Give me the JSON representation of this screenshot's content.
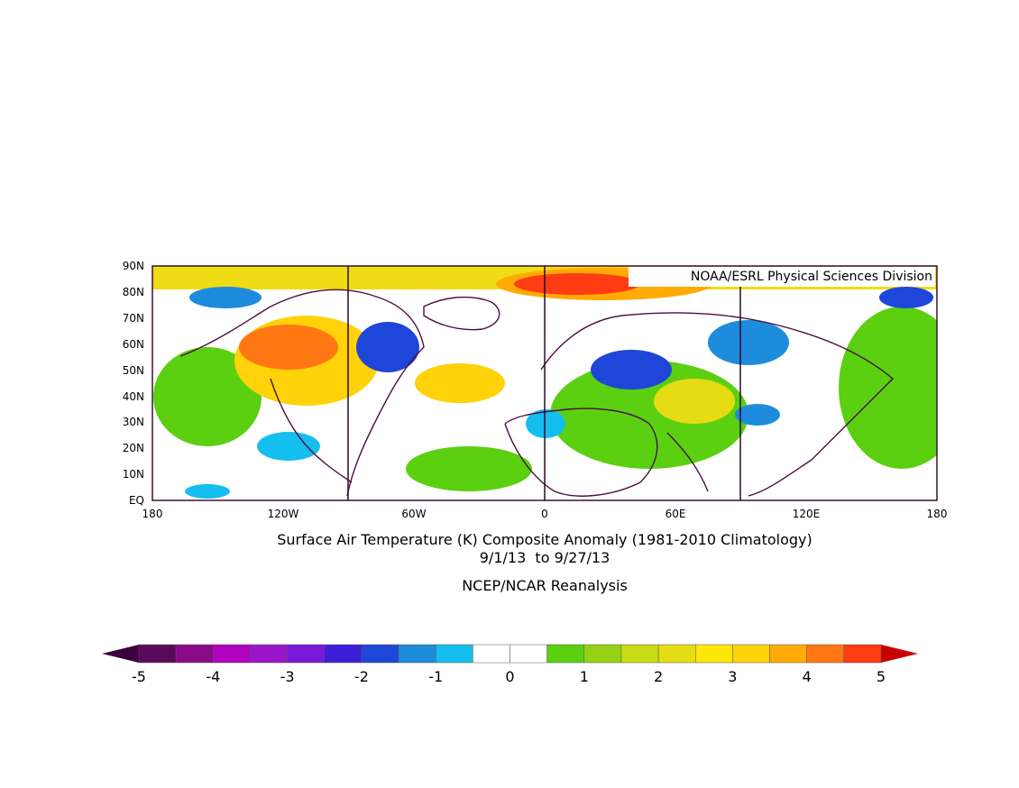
{
  "map": {
    "credit": "NOAA/ESRL Physical Sciences Division",
    "lat_labels": [
      "90N",
      "80N",
      "70N",
      "60N",
      "50N",
      "40N",
      "30N",
      "20N",
      "10N",
      "EQ"
    ],
    "lon_labels": [
      "180",
      "120W",
      "60W",
      "0",
      "60E",
      "120E",
      "180"
    ],
    "title_line1": "Surface Air Temperature (K) Composite Anomaly (1981-2010 Climatology)",
    "title_line2": "9/1/13  to 9/27/13",
    "subtitle": "NCEP/NCAR Reanalysis"
  },
  "legend": {
    "labels": [
      "-5",
      "-4",
      "-3",
      "-2",
      "-1",
      "0",
      "1",
      "2",
      "3",
      "4",
      "5"
    ],
    "colors": [
      "#5a0a5a",
      "#8a0a8a",
      "#b000c0",
      "#9a14c8",
      "#7818d8",
      "#3c1ed8",
      "#1e46d8",
      "#1e8cdc",
      "#14beee",
      "#ffffff",
      "#ffffff",
      "#5ad010",
      "#96d214",
      "#c8dc14",
      "#e6dc14",
      "#ffe60a",
      "#ffd20a",
      "#ffaa05",
      "#ff7814",
      "#ff3c14"
    ],
    "low_arrow_color": "#3c003c",
    "high_arrow_color": "#c80000"
  }
}
